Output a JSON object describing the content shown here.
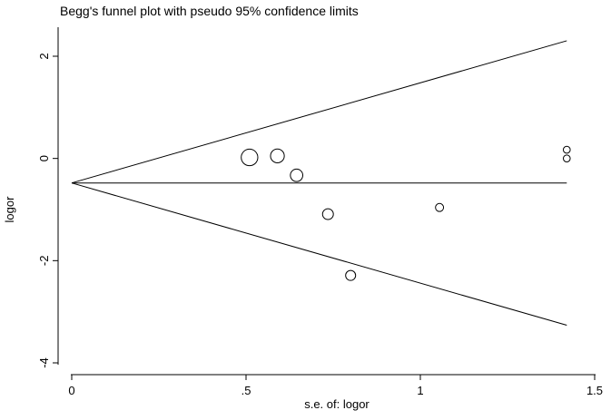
{
  "chart_data": {
    "type": "scatter",
    "title": "Begg's funnel plot with pseudo 95% confidence limits",
    "xlabel": "s.e. of: logor",
    "ylabel": "logor",
    "xlim": [
      0,
      1.5
    ],
    "ylim": [
      -4,
      2
    ],
    "x_ticks": [
      0,
      0.5,
      1,
      1.5
    ],
    "x_tick_labels": [
      "0",
      ".5",
      "1",
      "1.5"
    ],
    "y_ticks": [
      -4,
      -2,
      0,
      2
    ],
    "y_tick_labels": [
      "-4",
      "-2",
      "0",
      "2"
    ],
    "grid": false,
    "legend": "none",
    "pooled_estimate": -0.48,
    "confidence_limit_z": 1.96,
    "limit_lines_x_range": [
      0,
      1.42
    ],
    "points": [
      {
        "x": 0.51,
        "y": 0.02,
        "weight": 3.84
      },
      {
        "x": 0.59,
        "y": 0.05,
        "weight": 2.87
      },
      {
        "x": 0.645,
        "y": -0.33,
        "weight": 2.4
      },
      {
        "x": 0.735,
        "y": -1.09,
        "weight": 1.85
      },
      {
        "x": 0.8,
        "y": -2.29,
        "weight": 1.56
      },
      {
        "x": 1.055,
        "y": -0.96,
        "weight": 0.9
      },
      {
        "x": 1.42,
        "y": 0.17,
        "weight": 0.5
      },
      {
        "x": 1.42,
        "y": 0.0,
        "weight": 0.5
      }
    ],
    "colors": {
      "line": "#000000",
      "marker": "#000000",
      "background": "#ffffff"
    }
  }
}
